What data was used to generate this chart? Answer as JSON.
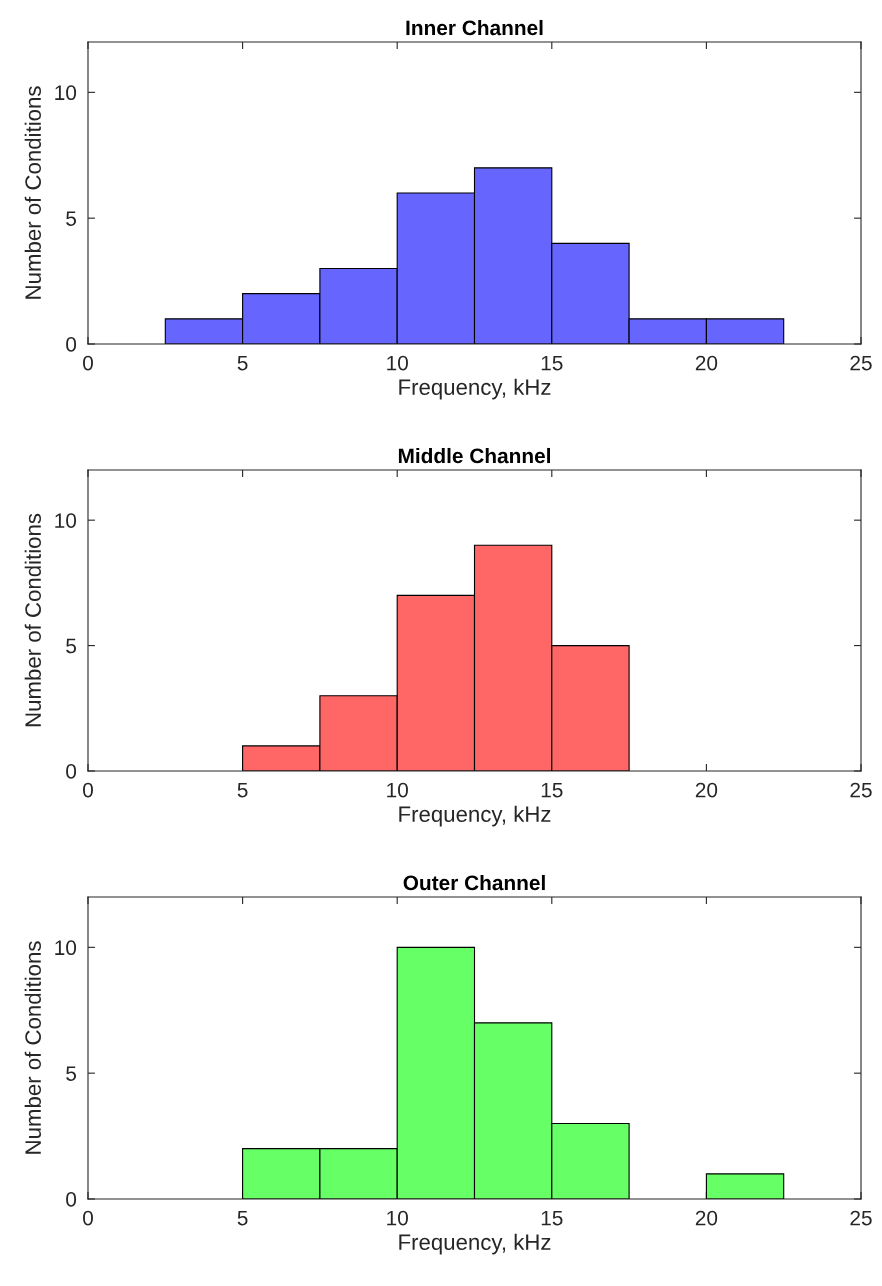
{
  "chart_data": [
    {
      "type": "histogram",
      "title": "Inner Channel",
      "xlabel": "Frequency, kHz",
      "ylabel": "Number of Conditions",
      "color": "#6666ff",
      "bins": [
        2.5,
        5,
        7.5,
        10,
        12.5,
        15,
        17.5,
        20,
        22.5
      ],
      "values": [
        1,
        2,
        3,
        6,
        7,
        4,
        1,
        1
      ],
      "xlim": [
        0,
        25
      ],
      "xticks": [
        0,
        5,
        10,
        15,
        20,
        25
      ],
      "ylim": [
        0,
        12
      ],
      "yticks": [
        0,
        5,
        10
      ],
      "grid": false
    },
    {
      "type": "histogram",
      "title": "Middle Channel",
      "xlabel": "Frequency, kHz",
      "ylabel": "Number of Conditions",
      "color": "#ff6666",
      "bins": [
        5,
        7.5,
        10,
        12.5,
        15,
        17.5
      ],
      "values": [
        1,
        3,
        7,
        9,
        5
      ],
      "xlim": [
        0,
        25
      ],
      "xticks": [
        0,
        5,
        10,
        15,
        20,
        25
      ],
      "ylim": [
        0,
        12
      ],
      "yticks": [
        0,
        5,
        10
      ],
      "grid": false
    },
    {
      "type": "histogram",
      "title": "Outer Channel",
      "xlabel": "Frequency, kHz",
      "ylabel": "Number of Conditions",
      "color": "#66ff66",
      "bins": [
        5,
        7.5,
        10,
        12.5,
        15,
        17.5,
        20,
        22.5
      ],
      "values": [
        2,
        2,
        10,
        7,
        3,
        0,
        1
      ],
      "xlim": [
        0,
        25
      ],
      "xticks": [
        0,
        5,
        10,
        15,
        20,
        25
      ],
      "ylim": [
        0,
        12
      ],
      "yticks": [
        0,
        5,
        10
      ],
      "grid": false
    }
  ]
}
